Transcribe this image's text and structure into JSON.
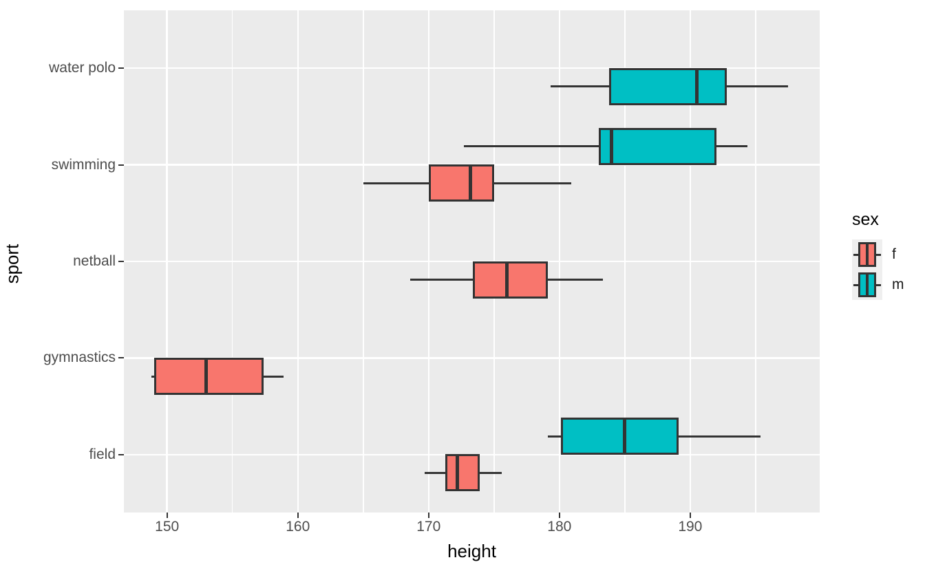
{
  "figure": {
    "kind": "ggplot-style horizontal boxplot"
  },
  "axes": {
    "x": {
      "label": "height",
      "tick_labels": [
        "150",
        "160",
        "170",
        "180",
        "190"
      ],
      "tick_values": [
        150,
        160,
        170,
        180,
        190
      ],
      "minor_grid_values": [
        155,
        165,
        175,
        185,
        195
      ],
      "range": [
        146.7,
        199.9
      ]
    },
    "y": {
      "label": "sport",
      "categories_bottom_to_top": [
        "field",
        "gymnastics",
        "netball",
        "swimming",
        "water polo"
      ],
      "tick_labels_top_to_bottom": [
        "water polo",
        "swimming",
        "netball",
        "gymnastics",
        "field"
      ]
    }
  },
  "legend": {
    "title": "sex",
    "entries": [
      {
        "label": "f",
        "color": "#F8766D"
      },
      {
        "label": "m",
        "color": "#00BFC4"
      }
    ]
  },
  "colors": {
    "female_fill": "#F8766D",
    "male_fill": "#00BFC4",
    "box_border": "#333333",
    "panel_background": "#EBEBEB",
    "gridline": "#FFFFFF",
    "tick_label": "#4D4D4D",
    "axis_title": "#000000",
    "legend_key_background": "#EFEFEF"
  },
  "chart_data": {
    "type": "boxplot",
    "orientation": "horizontal",
    "title": "",
    "xlabel": "height",
    "ylabel": "sport",
    "x_range": [
      146.7,
      199.9
    ],
    "grid": "major 10-unit and minor 5-unit white verticals; white horizontal line per category",
    "legend_position": "right",
    "slot_offset_units": 0.19,
    "band_units_total": 5.2,
    "series": [
      {
        "sport": "water polo",
        "sex": "m",
        "slot": "below",
        "min": 179.3,
        "q1": 183.8,
        "median": 190.5,
        "q3": 192.8,
        "max": 197.5
      },
      {
        "sport": "swimming",
        "sex": "m",
        "slot": "above",
        "min": 172.7,
        "q1": 183.0,
        "median": 184.0,
        "q3": 192.0,
        "max": 194.4
      },
      {
        "sport": "swimming",
        "sex": "f",
        "slot": "below",
        "min": 165.0,
        "q1": 170.0,
        "median": 173.2,
        "q3": 175.0,
        "max": 180.9
      },
      {
        "sport": "netball",
        "sex": "f",
        "slot": "below",
        "min": 168.6,
        "q1": 173.4,
        "median": 176.0,
        "q3": 179.1,
        "max": 183.3
      },
      {
        "sport": "gymnastics",
        "sex": "f",
        "slot": "below",
        "min": 148.8,
        "q1": 149.0,
        "median": 153.0,
        "q3": 157.4,
        "max": 158.9
      },
      {
        "sport": "field",
        "sex": "m",
        "slot": "above",
        "min": 179.1,
        "q1": 180.1,
        "median": 185.0,
        "q3": 189.1,
        "max": 195.4
      },
      {
        "sport": "field",
        "sex": "f",
        "slot": "below",
        "min": 169.7,
        "q1": 171.3,
        "median": 172.2,
        "q3": 173.9,
        "max": 175.6
      }
    ]
  }
}
